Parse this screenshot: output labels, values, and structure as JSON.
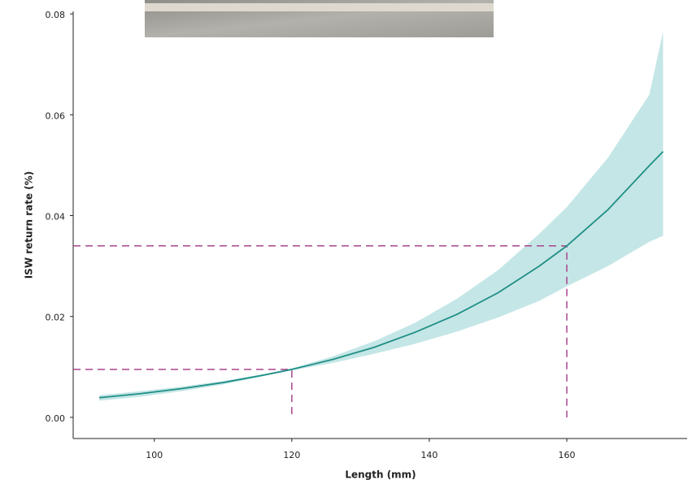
{
  "chart_data": {
    "type": "line",
    "x_label": "Length (mm)",
    "y_label": "ISW return rate (%)",
    "x": [
      92,
      98,
      104,
      110,
      116,
      120,
      126,
      132,
      138,
      144,
      150,
      156,
      160,
      166,
      172,
      174
    ],
    "series": [
      {
        "color": "#1f8f86",
        "values": [
          0.0039,
          0.0047,
          0.0057,
          0.0069,
          0.0084,
          0.0095,
          0.0115,
          0.0139,
          0.0169,
          0.0204,
          0.0247,
          0.03,
          0.034,
          0.0412,
          0.0499,
          0.0527
        ]
      }
    ],
    "band": {
      "color": "#c5e6e6",
      "lower": [
        0.0033,
        0.0041,
        0.0052,
        0.0065,
        0.0082,
        0.0093,
        0.0108,
        0.0126,
        0.0146,
        0.017,
        0.0198,
        0.0231,
        0.026,
        0.03,
        0.0348,
        0.036
      ],
      "upper": [
        0.0044,
        0.0052,
        0.0061,
        0.0072,
        0.0086,
        0.0097,
        0.0121,
        0.0151,
        0.0188,
        0.0235,
        0.0292,
        0.0364,
        0.0417,
        0.0515,
        0.064,
        0.0765
      ]
    },
    "reference_lines": [
      {
        "x": 120,
        "y": 0.0095
      },
      {
        "x": 160,
        "y": 0.034
      }
    ],
    "reference_color": "#a9468f",
    "xlim": [
      88.2,
      177.5
    ],
    "ylim": [
      -0.0042,
      0.0805
    ],
    "xticks": [
      100,
      120,
      140,
      160
    ],
    "yticks": [
      {
        "value": 0,
        "label": "0.00"
      },
      0.02,
      0.04,
      0.06,
      0.08
    ]
  }
}
